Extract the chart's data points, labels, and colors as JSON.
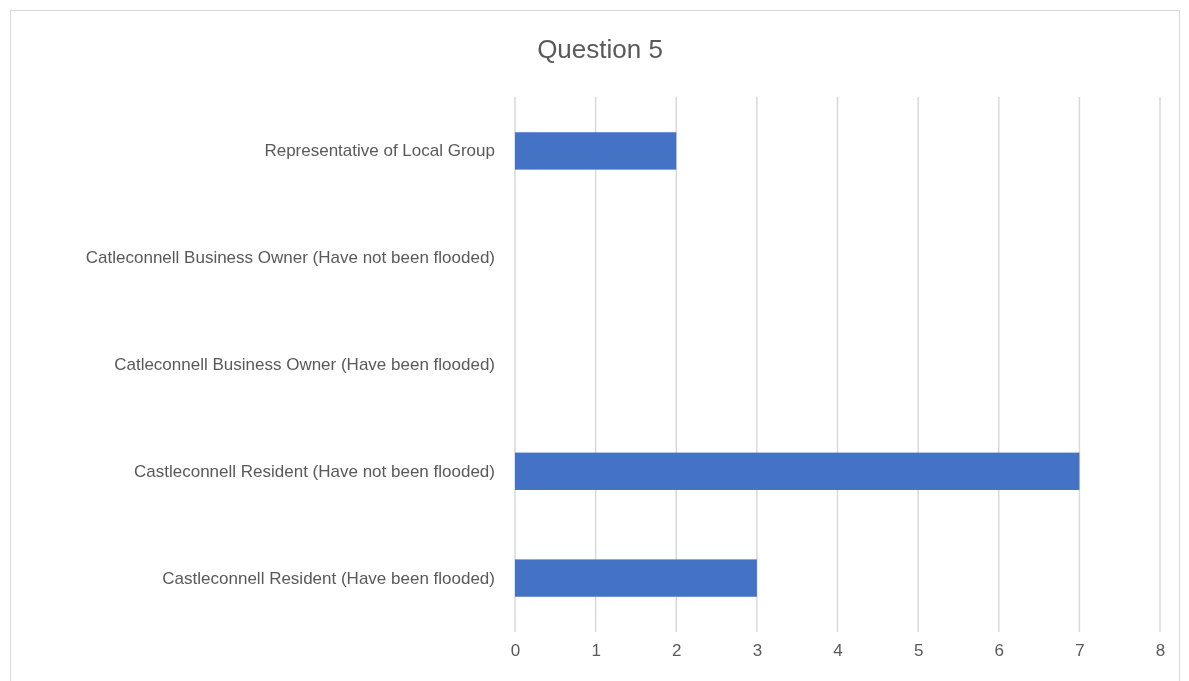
{
  "chart_data": {
    "type": "bar",
    "title": "Question 5",
    "orientation": "horizontal",
    "categories": [
      "Representative of Local Group",
      "Catleconnell Business Owner (Have not been flooded)",
      "Catleconnell Business Owner (Have been flooded)",
      "Castleconnell Resident (Have not been flooded)",
      "Castleconnell Resident (Have been flooded)"
    ],
    "values": [
      2,
      0,
      0,
      7,
      3
    ],
    "color": "#4472c4",
    "xlim": [
      0,
      8
    ],
    "xticks": [
      0,
      1,
      2,
      3,
      4,
      5,
      6,
      7,
      8
    ],
    "grid": "x"
  }
}
